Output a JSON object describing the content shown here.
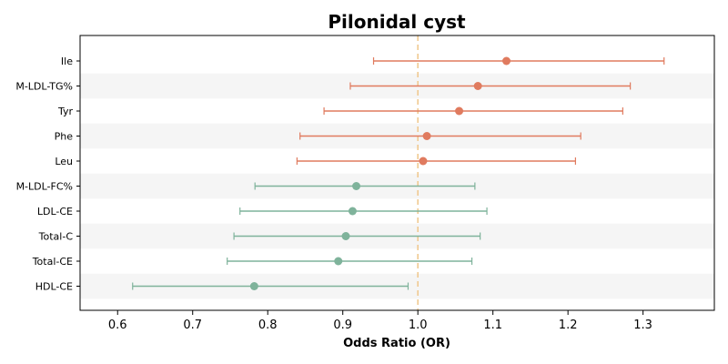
{
  "chart_data": {
    "type": "forest",
    "title": "Pilonidal cyst",
    "xlabel": "Odds Ratio (OR)",
    "ylabel": "",
    "xlim": [
      0.55,
      1.395
    ],
    "xticks": [
      0.6,
      0.7,
      0.8,
      0.9,
      1.0,
      1.1,
      1.2,
      1.3
    ],
    "xtick_labels": [
      "0.6",
      "0.7",
      "0.8",
      "0.9",
      "1.0",
      "1.1",
      "1.2",
      "1.3"
    ],
    "reference_line": 1.0,
    "grid": false,
    "alternating_row_shading": true,
    "colors": {
      "increase": "#e07b5f",
      "decrease": "#7fb39b",
      "reference": "#f0c78a",
      "row_shade": "#f5f5f5"
    },
    "rows": [
      {
        "label": "Ile",
        "or": 1.118,
        "lower": 0.941,
        "upper": 1.328,
        "group": "increase"
      },
      {
        "label": "M-LDL-TG%",
        "or": 1.08,
        "lower": 0.91,
        "upper": 1.283,
        "group": "increase"
      },
      {
        "label": "Tyr",
        "or": 1.055,
        "lower": 0.875,
        "upper": 1.273,
        "group": "increase"
      },
      {
        "label": "Phe",
        "or": 1.012,
        "lower": 0.843,
        "upper": 1.217,
        "group": "increase"
      },
      {
        "label": "Leu",
        "or": 1.007,
        "lower": 0.839,
        "upper": 1.21,
        "group": "increase"
      },
      {
        "label": "M-LDL-FC%",
        "or": 0.918,
        "lower": 0.783,
        "upper": 1.076,
        "group": "decrease"
      },
      {
        "label": "LDL-CE",
        "or": 0.913,
        "lower": 0.763,
        "upper": 1.092,
        "group": "decrease"
      },
      {
        "label": "Total-C",
        "or": 0.904,
        "lower": 0.755,
        "upper": 1.083,
        "group": "decrease"
      },
      {
        "label": "Total-CE",
        "or": 0.894,
        "lower": 0.746,
        "upper": 1.072,
        "group": "decrease"
      },
      {
        "label": "HDL-CE",
        "or": 0.782,
        "lower": 0.62,
        "upper": 0.987,
        "group": "decrease"
      }
    ]
  }
}
